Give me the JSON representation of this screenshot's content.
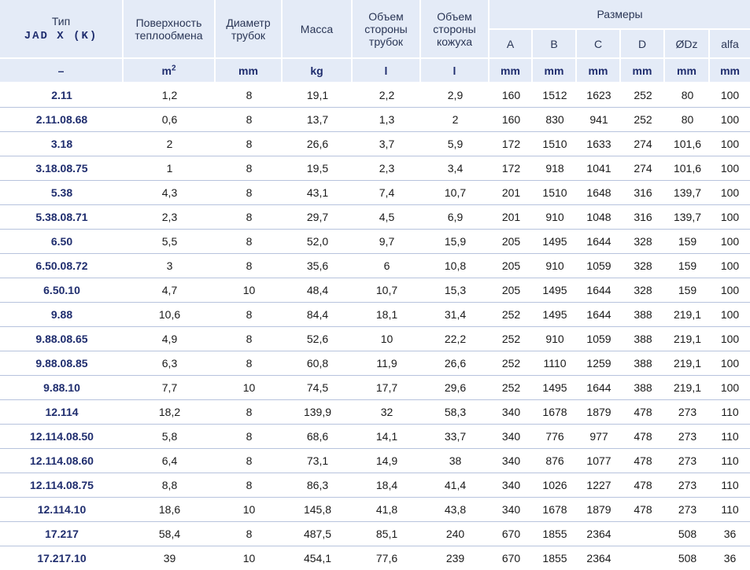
{
  "header": {
    "type_label": "Тип",
    "model_code": "JAD X (K)",
    "surface_label": "Поверхность теплообмена",
    "diameter_label": "Диаметр трубок",
    "mass_label": "Масса",
    "tube_volume_label": "Объем стороны трубок",
    "shell_volume_label": "Объем стороны кожуха",
    "dimensions_label": "Размеры",
    "dim_columns": [
      "A",
      "B",
      "C",
      "D",
      "ØDz",
      "alfa"
    ]
  },
  "units": {
    "type": "–",
    "surface": "m",
    "surface_exp": "2",
    "diameter": "mm",
    "mass": "kg",
    "tube_volume": "l",
    "shell_volume": "l",
    "dims": [
      "mm",
      "mm",
      "mm",
      "mm",
      "mm",
      "mm"
    ]
  },
  "rows": [
    [
      "2.11",
      "1,2",
      "8",
      "19,1",
      "2,2",
      "2,9",
      "160",
      "1512",
      "1623",
      "252",
      "80",
      "100"
    ],
    [
      "2.11.08.68",
      "0,6",
      "8",
      "13,7",
      "1,3",
      "2",
      "160",
      "830",
      "941",
      "252",
      "80",
      "100"
    ],
    [
      "3.18",
      "2",
      "8",
      "26,6",
      "3,7",
      "5,9",
      "172",
      "1510",
      "1633",
      "274",
      "101,6",
      "100"
    ],
    [
      "3.18.08.75",
      "1",
      "8",
      "19,5",
      "2,3",
      "3,4",
      "172",
      "918",
      "1041",
      "274",
      "101,6",
      "100"
    ],
    [
      "5.38",
      "4,3",
      "8",
      "43,1",
      "7,4",
      "10,7",
      "201",
      "1510",
      "1648",
      "316",
      "139,7",
      "100"
    ],
    [
      "5.38.08.71",
      "2,3",
      "8",
      "29,7",
      "4,5",
      "6,9",
      "201",
      "910",
      "1048",
      "316",
      "139,7",
      "100"
    ],
    [
      "6.50",
      "5,5",
      "8",
      "52,0",
      "9,7",
      "15,9",
      "205",
      "1495",
      "1644",
      "328",
      "159",
      "100"
    ],
    [
      "6.50.08.72",
      "3",
      "8",
      "35,6",
      "6",
      "10,8",
      "205",
      "910",
      "1059",
      "328",
      "159",
      "100"
    ],
    [
      "6.50.10",
      "4,7",
      "10",
      "48,4",
      "10,7",
      "15,3",
      "205",
      "1495",
      "1644",
      "328",
      "159",
      "100"
    ],
    [
      "9.88",
      "10,6",
      "8",
      "84,4",
      "18,1",
      "31,4",
      "252",
      "1495",
      "1644",
      "388",
      "219,1",
      "100"
    ],
    [
      "9.88.08.65",
      "4,9",
      "8",
      "52,6",
      "10",
      "22,2",
      "252",
      "910",
      "1059",
      "388",
      "219,1",
      "100"
    ],
    [
      "9.88.08.85",
      "6,3",
      "8",
      "60,8",
      "11,9",
      "26,6",
      "252",
      "1110",
      "1259",
      "388",
      "219,1",
      "100"
    ],
    [
      "9.88.10",
      "7,7",
      "10",
      "74,5",
      "17,7",
      "29,6",
      "252",
      "1495",
      "1644",
      "388",
      "219,1",
      "100"
    ],
    [
      "12.114",
      "18,2",
      "8",
      "139,9",
      "32",
      "58,3",
      "340",
      "1678",
      "1879",
      "478",
      "273",
      "110"
    ],
    [
      "12.114.08.50",
      "5,8",
      "8",
      "68,6",
      "14,1",
      "33,7",
      "340",
      "776",
      "977",
      "478",
      "273",
      "110"
    ],
    [
      "12.114.08.60",
      "6,4",
      "8",
      "73,1",
      "14,9",
      "38",
      "340",
      "876",
      "1077",
      "478",
      "273",
      "110"
    ],
    [
      "12.114.08.75",
      "8,8",
      "8",
      "86,3",
      "18,4",
      "41,4",
      "340",
      "1026",
      "1227",
      "478",
      "273",
      "110"
    ],
    [
      "12.114.10",
      "18,6",
      "10",
      "145,8",
      "41,8",
      "43,8",
      "340",
      "1678",
      "1879",
      "478",
      "273",
      "110"
    ],
    [
      "17.217",
      "58,4",
      "8",
      "487,5",
      "85,1",
      "240",
      "670",
      "1855",
      "2364",
      "",
      "508",
      "36"
    ],
    [
      "17.217.10",
      "39",
      "10",
      "454,1",
      "77,6",
      "239",
      "670",
      "1855",
      "2364",
      "",
      "508",
      "36"
    ]
  ]
}
